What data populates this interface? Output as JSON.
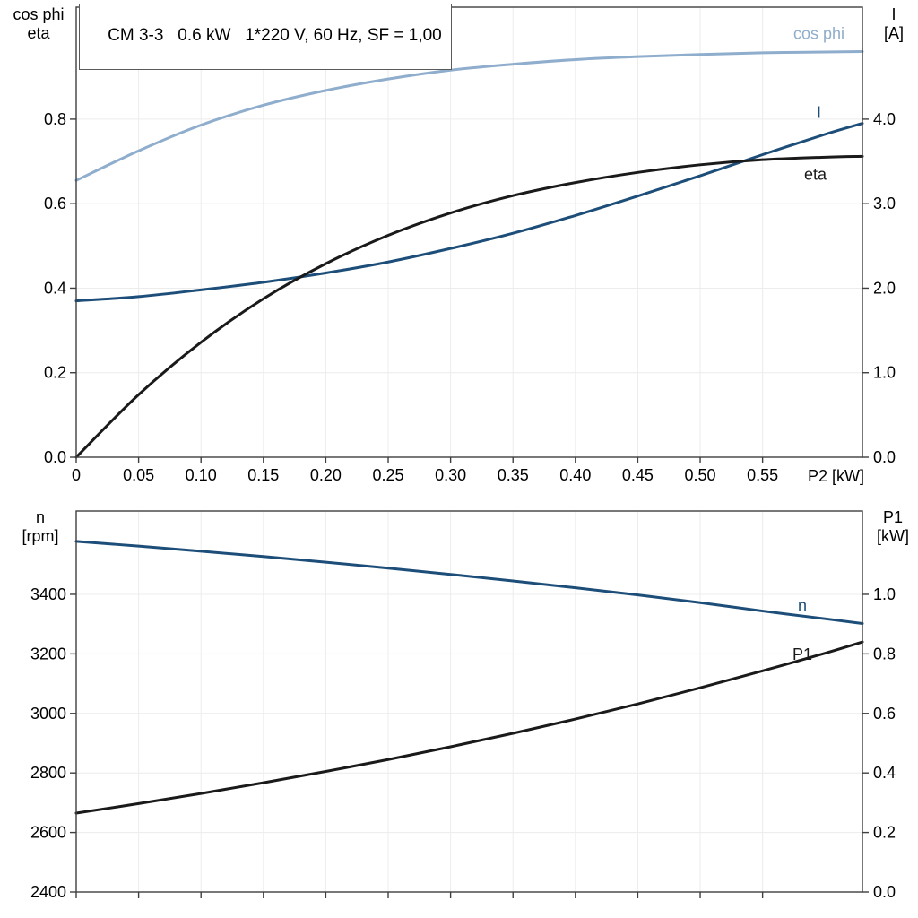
{
  "title_box": "CM 3-3   0.6 kW   1*220 V, 60 Hz, SF = 1,00",
  "colors": {
    "light_blue": "#8fadcc",
    "dark_blue": "#1d4e79",
    "black": "#1a1a1a",
    "axis": "#3f3f3f",
    "grid": "#ececec",
    "text": "#000000"
  },
  "chart_data": [
    {
      "type": "line",
      "name": "motor-electrical-chart",
      "grid": true,
      "xlim": [
        0,
        0.63
      ],
      "x": [
        0,
        0.05,
        0.1,
        0.15,
        0.2,
        0.25,
        0.3,
        0.35,
        0.4,
        0.45,
        0.5,
        0.55,
        0.6,
        0.63
      ],
      "x_ticks": [
        0,
        0.05,
        0.1,
        0.15,
        0.2,
        0.25,
        0.3,
        0.35,
        0.4,
        0.45,
        0.5,
        0.55
      ],
      "x_tick_labels": [
        "0",
        "0.05",
        "0.10",
        "0.15",
        "0.20",
        "0.25",
        "0.30",
        "0.35",
        "0.40",
        "0.45",
        "0.50",
        "0.55"
      ],
      "x_axis_label": "P2 [kW]",
      "left_axis": {
        "title_lines": [
          "cos phi",
          "eta"
        ],
        "lim": [
          0,
          1.065
        ],
        "ticks": [
          0,
          0.2,
          0.4,
          0.6,
          0.8
        ],
        "tick_labels": [
          "0.0",
          "0.2",
          "0.4",
          "0.6",
          "0.8"
        ]
      },
      "right_axis": {
        "title_lines": [
          "I",
          "[A]"
        ],
        "lim": [
          0,
          5.325
        ],
        "ticks": [
          0,
          1,
          2,
          3,
          4
        ],
        "tick_labels": [
          "0.0",
          "1.0",
          "2.0",
          "3.0",
          "4.0"
        ]
      },
      "series": [
        {
          "name": "cos-phi-curve",
          "label": "cos phi",
          "axis": "left",
          "color_key": "light_blue",
          "width": 3,
          "label_dx": -20,
          "label_dy": -14,
          "label_anchor": "end",
          "values": [
            0.655,
            0.725,
            0.786,
            0.833,
            0.868,
            0.895,
            0.916,
            0.93,
            0.941,
            0.948,
            0.953,
            0.957,
            0.959,
            0.96
          ]
        },
        {
          "name": "current-curve",
          "label": "I",
          "axis": "right",
          "color_key": "dark_blue",
          "width": 3,
          "label_dx": -46,
          "label_dy": -6,
          "label_anchor": "end",
          "values": [
            1.85,
            1.9,
            1.98,
            2.07,
            2.18,
            2.31,
            2.47,
            2.65,
            2.86,
            3.09,
            3.33,
            3.58,
            3.82,
            3.95
          ]
        },
        {
          "name": "eta-curve",
          "label": "eta",
          "axis": "left",
          "color_key": "black",
          "width": 3,
          "label_dx": -40,
          "label_dy": 26,
          "label_anchor": "end",
          "values": [
            0,
            0.148,
            0.272,
            0.375,
            0.458,
            0.525,
            0.578,
            0.619,
            0.65,
            0.674,
            0.692,
            0.704,
            0.71,
            0.712
          ]
        }
      ]
    },
    {
      "type": "line",
      "name": "motor-speed-power-chart",
      "grid": true,
      "xlim": [
        0,
        0.63
      ],
      "x": [
        0,
        0.05,
        0.1,
        0.15,
        0.2,
        0.25,
        0.3,
        0.35,
        0.4,
        0.45,
        0.5,
        0.55,
        0.6,
        0.63
      ],
      "x_ticks": [
        0,
        0.05,
        0.1,
        0.15,
        0.2,
        0.25,
        0.3,
        0.35,
        0.4,
        0.45,
        0.5,
        0.55
      ],
      "x_tick_labels": [],
      "x_axis_label": "",
      "left_axis": {
        "title_lines": [
          "n",
          "[rpm]"
        ],
        "lim": [
          2400,
          3680
        ],
        "ticks": [
          2400,
          2600,
          2800,
          3000,
          3200,
          3400
        ],
        "tick_labels": [
          "2400",
          "2600",
          "2800",
          "3000",
          "3200",
          "3400"
        ]
      },
      "right_axis": {
        "title_lines": [
          "P1",
          "[kW]"
        ],
        "lim": [
          0,
          1.28
        ],
        "ticks": [
          0,
          0.2,
          0.4,
          0.6,
          0.8,
          1.0
        ],
        "tick_labels": [
          "0.0",
          "0.2",
          "0.4",
          "0.6",
          "0.8",
          "1.0"
        ]
      },
      "series": [
        {
          "name": "speed-curve",
          "label": "n",
          "axis": "left",
          "color_key": "dark_blue",
          "width": 3,
          "label_dx": -62,
          "label_dy": -14,
          "label_anchor": "end",
          "values": [
            3578,
            3562,
            3545,
            3527,
            3508,
            3488,
            3467,
            3445,
            3422,
            3398,
            3372,
            3344,
            3318,
            3302
          ]
        },
        {
          "name": "p1-curve",
          "label": "P1",
          "axis": "right",
          "color_key": "black",
          "width": 3,
          "label_dx": -56,
          "label_dy": 20,
          "label_anchor": "end",
          "values": [
            0.265,
            0.297,
            0.331,
            0.367,
            0.405,
            0.445,
            0.488,
            0.533,
            0.581,
            0.632,
            0.686,
            0.743,
            0.802,
            0.84
          ]
        }
      ]
    }
  ]
}
